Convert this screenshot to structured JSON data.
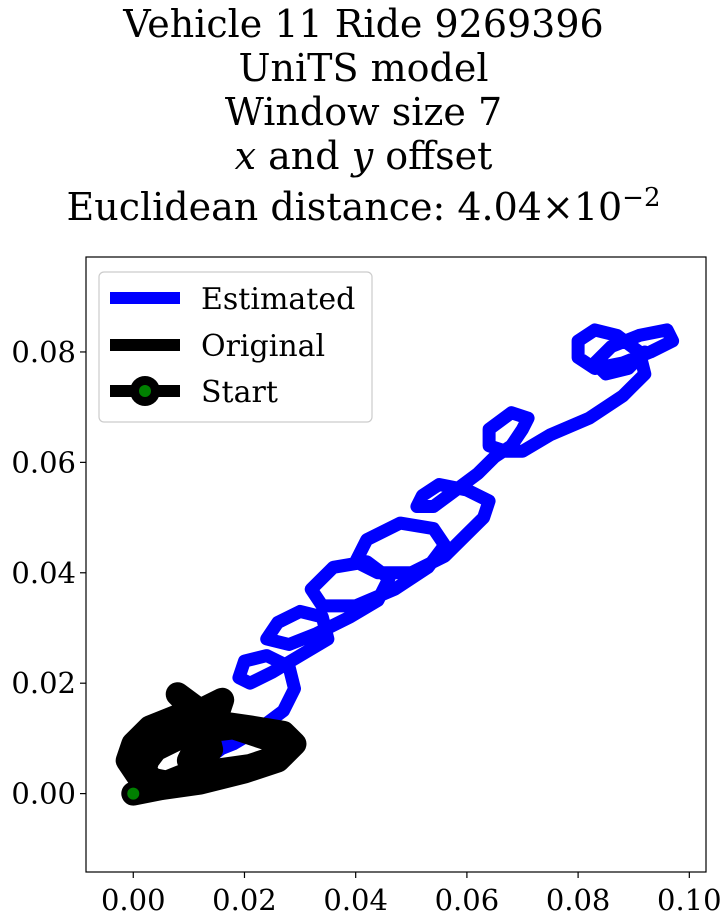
{
  "chart_data": {
    "type": "line",
    "title_lines": [
      "Vehicle 11 Ride 9269396",
      "UniTS model",
      "Window size 7"
    ],
    "title_offset": {
      "x": "x",
      "and": " and ",
      "y": "y",
      "rest": " offset"
    },
    "title_distance": {
      "prefix": "Euclidean distance: ",
      "mantissa": "4.04",
      "times": "×",
      "base": "10",
      "exponent": "−2"
    },
    "xlabel": "",
    "ylabel": "",
    "xlim": [
      -0.0085,
      0.103
    ],
    "ylim": [
      -0.0142,
      0.0972
    ],
    "xticks": [
      0.0,
      0.02,
      0.04,
      0.06,
      0.08,
      0.1
    ],
    "xtick_labels": [
      "0.00",
      "0.02",
      "0.04",
      "0.06",
      "0.08",
      "0.10"
    ],
    "yticks": [
      0.0,
      0.02,
      0.04,
      0.06,
      0.08
    ],
    "ytick_labels": [
      "0.00",
      "0.02",
      "0.04",
      "0.06",
      "0.08"
    ],
    "grid": false,
    "legend_position": "upper-left",
    "series": [
      {
        "name": "Estimated",
        "color": "#0000ff",
        "x": [
          0.002,
          0.008,
          0.013,
          0.017,
          0.019,
          0.016,
          0.012,
          0.01,
          0.013,
          0.018,
          0.023,
          0.027,
          0.029,
          0.028,
          0.024,
          0.02,
          0.019,
          0.021,
          0.025,
          0.03,
          0.035,
          0.034,
          0.03,
          0.026,
          0.024,
          0.028,
          0.033,
          0.039,
          0.044,
          0.046,
          0.042,
          0.036,
          0.032,
          0.034,
          0.04,
          0.047,
          0.053,
          0.056,
          0.054,
          0.048,
          0.042,
          0.04,
          0.044,
          0.05,
          0.056,
          0.06,
          0.063,
          0.064,
          0.06,
          0.055,
          0.052,
          0.051,
          0.054,
          0.058,
          0.062,
          0.065,
          0.068,
          0.07,
          0.071,
          0.068,
          0.064,
          0.064,
          0.067,
          0.07,
          0.075,
          0.082,
          0.088,
          0.092,
          0.091,
          0.087,
          0.083,
          0.08,
          0.08,
          0.083,
          0.088,
          0.093,
          0.097,
          0.096,
          0.091,
          0.086,
          0.083,
          0.085,
          0.089,
          0.092
        ],
        "y": [
          0.001,
          0.003,
          0.006,
          0.009,
          0.011,
          0.013,
          0.011,
          0.009,
          0.007,
          0.009,
          0.012,
          0.015,
          0.019,
          0.023,
          0.025,
          0.024,
          0.021,
          0.02,
          0.022,
          0.025,
          0.028,
          0.032,
          0.033,
          0.031,
          0.028,
          0.027,
          0.029,
          0.032,
          0.035,
          0.039,
          0.042,
          0.041,
          0.037,
          0.034,
          0.034,
          0.037,
          0.041,
          0.045,
          0.048,
          0.049,
          0.046,
          0.042,
          0.04,
          0.04,
          0.043,
          0.047,
          0.05,
          0.053,
          0.055,
          0.056,
          0.054,
          0.052,
          0.052,
          0.055,
          0.058,
          0.061,
          0.063,
          0.066,
          0.068,
          0.069,
          0.066,
          0.063,
          0.062,
          0.062,
          0.065,
          0.068,
          0.072,
          0.076,
          0.08,
          0.083,
          0.084,
          0.082,
          0.079,
          0.077,
          0.078,
          0.08,
          0.082,
          0.084,
          0.083,
          0.081,
          0.078,
          0.076,
          0.077,
          0.08
        ]
      },
      {
        "name": "Original",
        "color": "#000000",
        "x": [
          0.0,
          0.005,
          0.012,
          0.02,
          0.026,
          0.029,
          0.027,
          0.021,
          0.014,
          0.008,
          0.003,
          0.0,
          -0.001,
          0.001,
          0.006,
          0.011,
          0.014,
          0.013,
          0.01,
          0.008,
          0.012,
          0.018,
          0.024,
          0.028,
          0.026,
          0.019,
          0.011,
          0.005,
          0.002,
          0.003,
          0.007,
          0.012,
          0.016,
          0.015,
          0.012,
          0.01,
          0.014,
          0.021,
          0.027,
          0.025,
          0.018,
          0.01,
          0.004,
          0.001
        ],
        "y": [
          0.0,
          0.001,
          0.002,
          0.004,
          0.006,
          0.009,
          0.011,
          0.012,
          0.013,
          0.014,
          0.012,
          0.009,
          0.006,
          0.003,
          0.002,
          0.004,
          0.008,
          0.012,
          0.016,
          0.018,
          0.015,
          0.012,
          0.01,
          0.008,
          0.006,
          0.004,
          0.002,
          0.001,
          0.004,
          0.008,
          0.012,
          0.015,
          0.017,
          0.014,
          0.01,
          0.006,
          0.004,
          0.005,
          0.007,
          0.01,
          0.012,
          0.011,
          0.008,
          0.004
        ]
      }
    ],
    "start": {
      "name": "Start",
      "x": 0.0,
      "y": 0.0,
      "marker_face": "#008000",
      "marker_edge": "#000000"
    }
  }
}
